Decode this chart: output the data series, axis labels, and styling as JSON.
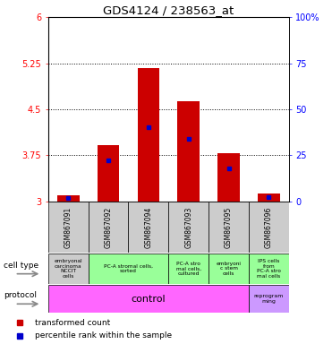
{
  "title": "GDS4124 / 238563_at",
  "samples": [
    "GSM867091",
    "GSM867092",
    "GSM867094",
    "GSM867093",
    "GSM867095",
    "GSM867096"
  ],
  "transformed_counts": [
    3.1,
    3.92,
    5.17,
    4.63,
    3.78,
    3.12
  ],
  "percentile_ranks": [
    2.0,
    22.0,
    40.0,
    34.0,
    18.0,
    2.5
  ],
  "ylim_left": [
    3.0,
    6.0
  ],
  "ylim_right": [
    0,
    100
  ],
  "yticks_left": [
    3.0,
    3.75,
    4.5,
    5.25,
    6.0
  ],
  "yticks_right": [
    0,
    25,
    50,
    75,
    100
  ],
  "bar_color": "#cc0000",
  "dot_color": "#0000cc",
  "bar_bottom": 3.0,
  "ct_groups": [
    {
      "indices": [
        0
      ],
      "label": "embryonal\ncarcinoma\nNCCIT\ncells",
      "color": "#cccccc"
    },
    {
      "indices": [
        1,
        2
      ],
      "label": "PC-A stromal cells,\nsorted",
      "color": "#99ff99"
    },
    {
      "indices": [
        3
      ],
      "label": "PC-A stro\nmal cells,\ncultured",
      "color": "#99ff99"
    },
    {
      "indices": [
        4
      ],
      "label": "embryoni\nc stem\ncells",
      "color": "#99ff99"
    },
    {
      "indices": [
        5
      ],
      "label": "IPS cells\nfrom\nPC-A stro\nmal cells",
      "color": "#99ff99"
    }
  ],
  "protocol_control_color": "#ff66ff",
  "protocol_reprogram_color": "#cc99ff",
  "sample_box_color": "#cccccc"
}
